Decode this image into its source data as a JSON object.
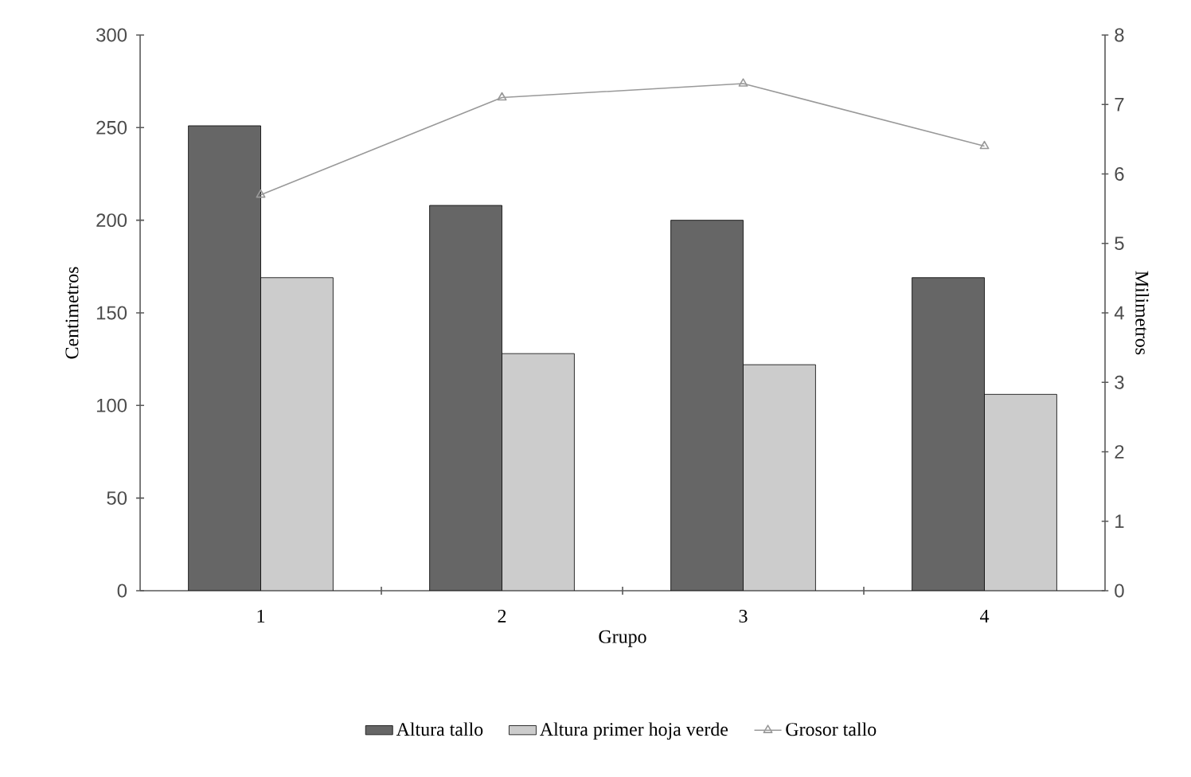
{
  "chart_data": {
    "type": "bar",
    "xlabel": "Grupo",
    "ylabel": "Centimetros",
    "y2label": "Milimetros",
    "categories": [
      "1",
      "2",
      "3",
      "4"
    ],
    "series": [
      {
        "name": "Altura tallo",
        "color": "#666666",
        "values": [
          251,
          208,
          200,
          169
        ]
      },
      {
        "name": "Altura primer hoja verde",
        "color": "#cccccc",
        "values": [
          169,
          128,
          122,
          106
        ]
      },
      {
        "name": "Grosor tallo",
        "type": "line",
        "axis": "y2",
        "color": "#999999",
        "marker": "triangle",
        "values": [
          5.7,
          7.1,
          7.3,
          6.4
        ]
      }
    ],
    "ylim": [
      0,
      300
    ],
    "yticks": [
      0,
      50,
      100,
      150,
      200,
      250,
      300
    ],
    "y2lim": [
      0,
      8
    ],
    "y2ticks": [
      0,
      1,
      2,
      3,
      4,
      5,
      6,
      7,
      8
    ],
    "grid": false,
    "legend": "bottom"
  }
}
